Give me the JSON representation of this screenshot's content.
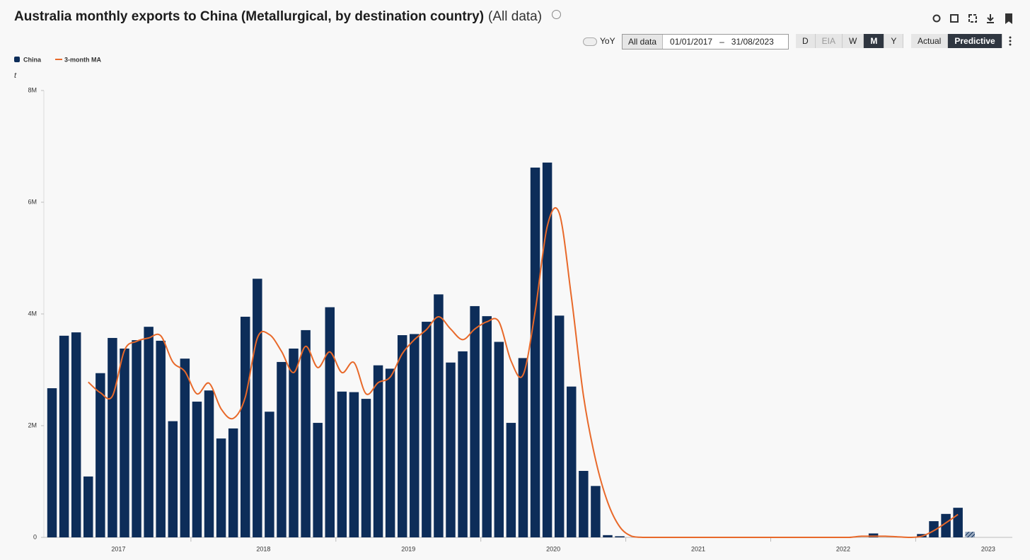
{
  "header": {
    "title": "Australia monthly exports to China (Metallurgical, by destination country)",
    "scope": "(All data)"
  },
  "controls": {
    "yoy": "YoY",
    "range_button": "All data",
    "start_date": "01/01/2017",
    "date_separator": "–",
    "end_date": "31/08/2023",
    "frequencies": [
      "D",
      "EIA",
      "W",
      "M",
      "Y"
    ],
    "active_frequency": "M",
    "modes": [
      "Actual",
      "Predictive"
    ],
    "active_mode": "Predictive"
  },
  "chart_data": {
    "type": "bar",
    "y_unit": "t",
    "x_labels": [
      "2017",
      "2018",
      "2019",
      "2020",
      "2021",
      "2022",
      "2023"
    ],
    "ylim": [
      0,
      8000000
    ],
    "yticks": [
      0,
      {
        "value": 2000000,
        "label": "2M"
      },
      {
        "value": 4000000,
        "label": "4M"
      },
      {
        "value": 6000000,
        "label": "6M"
      },
      {
        "value": 8000000,
        "label": "8M"
      }
    ],
    "series": [
      {
        "name": "China",
        "type": "bar",
        "color": "#0d2d59",
        "predicted": [
          76
        ],
        "values": [
          2670000,
          3610000,
          3670000,
          1090000,
          2940000,
          3570000,
          3380000,
          3530000,
          3770000,
          3520000,
          2080000,
          3200000,
          2430000,
          2630000,
          1770000,
          1950000,
          3950000,
          4630000,
          2250000,
          3140000,
          3380000,
          3710000,
          2050000,
          4120000,
          2610000,
          2600000,
          2480000,
          3080000,
          3020000,
          3620000,
          3640000,
          3860000,
          4350000,
          3130000,
          3330000,
          4140000,
          3960000,
          3500000,
          2050000,
          3210000,
          6620000,
          6710000,
          3970000,
          2700000,
          1190000,
          920000,
          40000,
          20000,
          0,
          0,
          0,
          0,
          0,
          0,
          0,
          0,
          0,
          0,
          0,
          0,
          0,
          0,
          0,
          0,
          0,
          0,
          0,
          0,
          70000,
          0,
          0,
          0,
          60000,
          290000,
          420000,
          530000,
          100000,
          null,
          null,
          null
        ]
      },
      {
        "name": "3-month MA",
        "type": "line",
        "color": "#e8692a",
        "values": [
          null,
          null,
          null,
          2780000,
          2590000,
          2530000,
          3350000,
          3510000,
          3570000,
          3610000,
          3140000,
          2970000,
          2570000,
          2760000,
          2300000,
          2130000,
          2510000,
          3570000,
          3630000,
          3330000,
          2950000,
          3420000,
          3040000,
          3320000,
          2950000,
          3130000,
          2570000,
          2770000,
          2870000,
          3290000,
          3540000,
          3720000,
          3950000,
          3730000,
          3540000,
          3730000,
          3860000,
          3860000,
          3160000,
          2910000,
          4050000,
          5570000,
          5800000,
          4300000,
          2530000,
          1390000,
          630000,
          190000,
          20000,
          0,
          0,
          0,
          0,
          0,
          0,
          0,
          0,
          0,
          0,
          0,
          0,
          0,
          0,
          0,
          0,
          0,
          0,
          20000,
          20000,
          20000,
          10000,
          0,
          20000,
          120000,
          260000,
          410000,
          null,
          null,
          null,
          null
        ]
      }
    ]
  }
}
